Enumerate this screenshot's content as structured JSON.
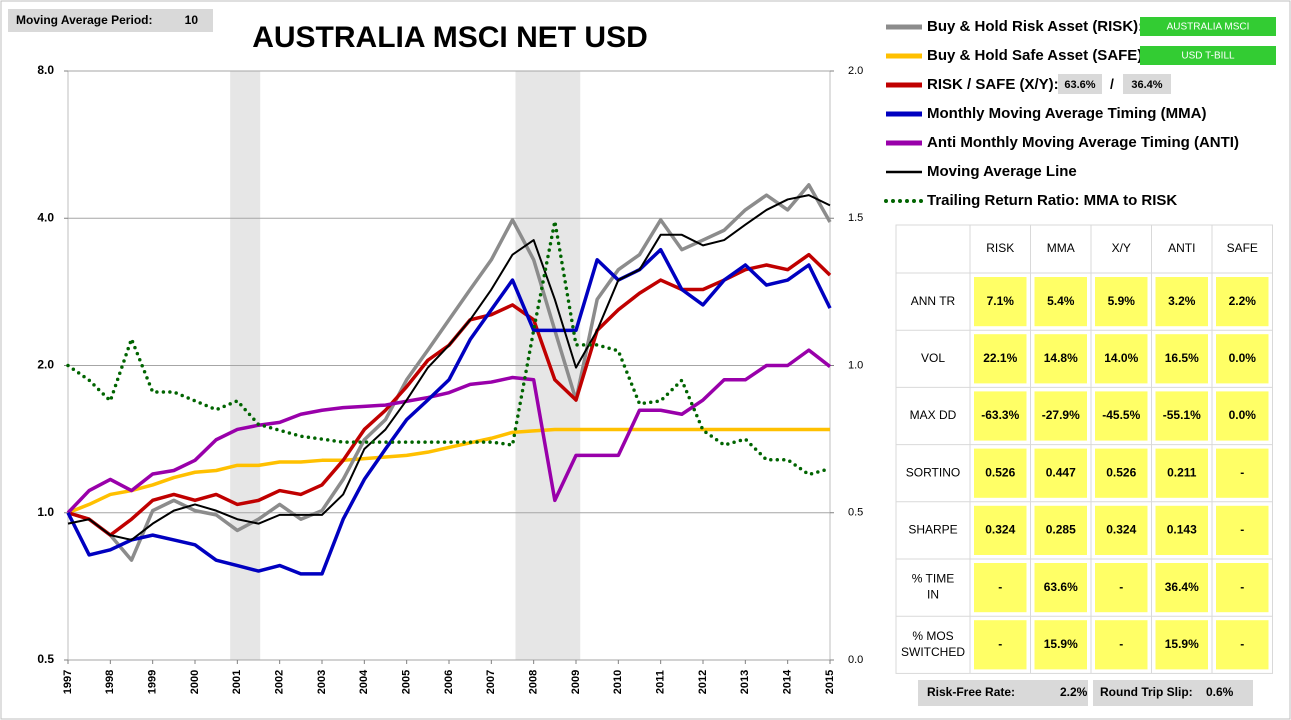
{
  "controls": {
    "ma_period_label": "Moving Average Period:",
    "ma_period": 10
  },
  "chart_data": {
    "type": "line",
    "title": "AUSTRALIA MSCI NET USD",
    "log_y": true,
    "grid": true,
    "x": [
      1997,
      1997.5,
      1998,
      1998.5,
      1999,
      1999.5,
      2000,
      2000.5,
      2001,
      2001.5,
      2002,
      2002.5,
      2003,
      2003.5,
      2004,
      2004.5,
      2005,
      2005.5,
      2006,
      2006.5,
      2007,
      2007.5,
      2008,
      2008.5,
      2009,
      2009.5,
      2010,
      2010.5,
      2011,
      2011.5,
      2012,
      2012.5,
      2013,
      2013.5,
      2014,
      2014.5,
      2015
    ],
    "xlim": [
      1997,
      2015
    ],
    "xticks": [
      1997,
      1998,
      1999,
      2000,
      2001,
      2002,
      2003,
      2004,
      2005,
      2006,
      2007,
      2008,
      2009,
      2010,
      2011,
      2012,
      2013,
      2014,
      2015
    ],
    "ylim": [
      0.5,
      8
    ],
    "yticks": [
      0.5,
      {
        "value": 1,
        "label": "1.0"
      },
      {
        "value": 2,
        "label": "2.0"
      },
      {
        "value": 4,
        "label": "4.0"
      },
      {
        "value": 8,
        "label": "8.0"
      }
    ],
    "y2lim": [
      0,
      2
    ],
    "y2ticks": [
      {
        "value": 0,
        "label": "0.0"
      },
      0.5,
      {
        "value": 1,
        "label": "1.0"
      },
      1.5,
      {
        "value": 2,
        "label": "2.0"
      }
    ],
    "shaded_periods": [
      [
        2000.83,
        2001.54
      ],
      [
        2007.57,
        2009.1
      ]
    ],
    "series": [
      {
        "name": "Buy & Hold Risk Asset (RISK):",
        "color": "#8c8c8c",
        "values": [
          1.0,
          0.97,
          0.9,
          0.8,
          1.01,
          1.06,
          1.01,
          0.99,
          0.92,
          0.97,
          1.04,
          0.97,
          1.01,
          1.17,
          1.41,
          1.55,
          1.87,
          2.15,
          2.48,
          2.86,
          3.29,
          3.97,
          3.29,
          2.36,
          1.7,
          2.73,
          3.14,
          3.37,
          3.97,
          3.45,
          3.61,
          3.78,
          4.16,
          4.46,
          4.16,
          4.68,
          3.93
        ]
      },
      {
        "name": "Buy & Hold Safe Asset (SAFE):",
        "color": "#ffc000",
        "values": [
          1.0,
          1.04,
          1.09,
          1.11,
          1.14,
          1.18,
          1.21,
          1.22,
          1.25,
          1.25,
          1.27,
          1.27,
          1.28,
          1.28,
          1.29,
          1.3,
          1.31,
          1.33,
          1.36,
          1.39,
          1.42,
          1.46,
          1.47,
          1.48,
          1.48,
          1.48,
          1.48,
          1.48,
          1.48,
          1.48,
          1.48,
          1.48,
          1.48,
          1.48,
          1.48,
          1.48,
          1.48
        ]
      },
      {
        "name": "RISK / SAFE (X/Y):",
        "color": "#c00000",
        "values": [
          1.0,
          0.97,
          0.9,
          0.97,
          1.06,
          1.09,
          1.06,
          1.09,
          1.04,
          1.06,
          1.11,
          1.09,
          1.14,
          1.28,
          1.48,
          1.62,
          1.81,
          2.05,
          2.2,
          2.48,
          2.54,
          2.66,
          2.48,
          1.87,
          1.7,
          2.36,
          2.6,
          2.81,
          2.99,
          2.86,
          2.86,
          2.99,
          3.14,
          3.21,
          3.14,
          3.37,
          3.06
        ]
      },
      {
        "name": "Monthly Moving Average Timing (MMA)",
        "color": "#0000c0",
        "values": [
          1.0,
          0.82,
          0.84,
          0.88,
          0.9,
          0.88,
          0.86,
          0.8,
          0.78,
          0.76,
          0.78,
          0.75,
          0.75,
          0.97,
          1.17,
          1.35,
          1.55,
          1.7,
          1.87,
          2.26,
          2.6,
          2.99,
          2.36,
          2.36,
          2.36,
          3.29,
          2.99,
          3.14,
          3.45,
          2.86,
          2.66,
          2.99,
          3.21,
          2.92,
          2.99,
          3.21,
          2.62
        ]
      },
      {
        "name": "Anti Monthly Moving Average Timing (ANTI)",
        "color": "#9900aa",
        "values": [
          1.0,
          1.11,
          1.17,
          1.11,
          1.2,
          1.22,
          1.28,
          1.41,
          1.48,
          1.51,
          1.53,
          1.59,
          1.62,
          1.64,
          1.65,
          1.66,
          1.69,
          1.72,
          1.76,
          1.83,
          1.85,
          1.89,
          1.87,
          1.06,
          1.31,
          1.31,
          1.31,
          1.62,
          1.62,
          1.59,
          1.7,
          1.87,
          1.87,
          2.0,
          2.0,
          2.15,
          1.99
        ]
      },
      {
        "name": "Moving Average Line",
        "color": "#000000",
        "values": [
          0.95,
          0.97,
          0.9,
          0.88,
          0.95,
          1.01,
          1.04,
          1.01,
          0.97,
          0.95,
          0.99,
          0.99,
          0.99,
          1.09,
          1.35,
          1.48,
          1.7,
          1.98,
          2.2,
          2.48,
          2.86,
          3.37,
          3.61,
          2.73,
          1.98,
          2.36,
          2.99,
          3.14,
          3.7,
          3.7,
          3.52,
          3.61,
          3.88,
          4.16,
          4.37,
          4.46,
          4.25
        ]
      },
      {
        "name": "Trailing Return Ratio: MMA to RISK",
        "color": "#006400",
        "dotted": true,
        "axis": "y2",
        "values": [
          1.0,
          0.95,
          0.88,
          1.09,
          0.91,
          0.91,
          0.88,
          0.85,
          0.88,
          0.8,
          0.78,
          0.76,
          0.75,
          0.74,
          0.74,
          0.74,
          0.74,
          0.74,
          0.74,
          0.74,
          0.74,
          0.73,
          1.12,
          1.49,
          1.07,
          1.07,
          1.05,
          0.87,
          0.88,
          0.95,
          0.78,
          0.73,
          0.75,
          0.68,
          0.68,
          0.63,
          0.65
        ]
      }
    ],
    "risk_asset": "AUSTRALIA MSCI",
    "safe_asset": "USD T-BILL",
    "allocation": {
      "risk": "63.6%",
      "separator": "/",
      "safe": "36.4%"
    }
  },
  "table": {
    "columns": [
      "RISK",
      "MMA",
      "X/Y",
      "ANTI",
      "SAFE"
    ],
    "rows": [
      {
        "label": "ANN TR",
        "cells": [
          "7.1%",
          "5.4%",
          "5.9%",
          "3.2%",
          "2.2%"
        ]
      },
      {
        "label": "VOL",
        "cells": [
          "22.1%",
          "14.8%",
          "14.0%",
          "16.5%",
          "0.0%"
        ]
      },
      {
        "label": "MAX DD",
        "cells": [
          "-63.3%",
          "-27.9%",
          "-45.5%",
          "-55.1%",
          "0.0%"
        ]
      },
      {
        "label": "SORTINO",
        "cells": [
          "0.526",
          "0.447",
          "0.526",
          "0.211",
          "-"
        ]
      },
      {
        "label": "SHARPE",
        "cells": [
          "0.324",
          "0.285",
          "0.324",
          "0.143",
          "-"
        ]
      },
      {
        "label": "% TIME IN",
        "cells": [
          "-",
          "63.6%",
          "-",
          "36.4%",
          "-"
        ]
      },
      {
        "label": "% MOS SWITCHED",
        "cells": [
          "-",
          "15.9%",
          "-",
          "15.9%",
          "-"
        ]
      }
    ]
  },
  "footer": {
    "risk_free_label": "Risk-Free Rate:",
    "risk_free": "2.2%",
    "slip_label": "Round Trip Slip:",
    "slip": "0.6%"
  }
}
